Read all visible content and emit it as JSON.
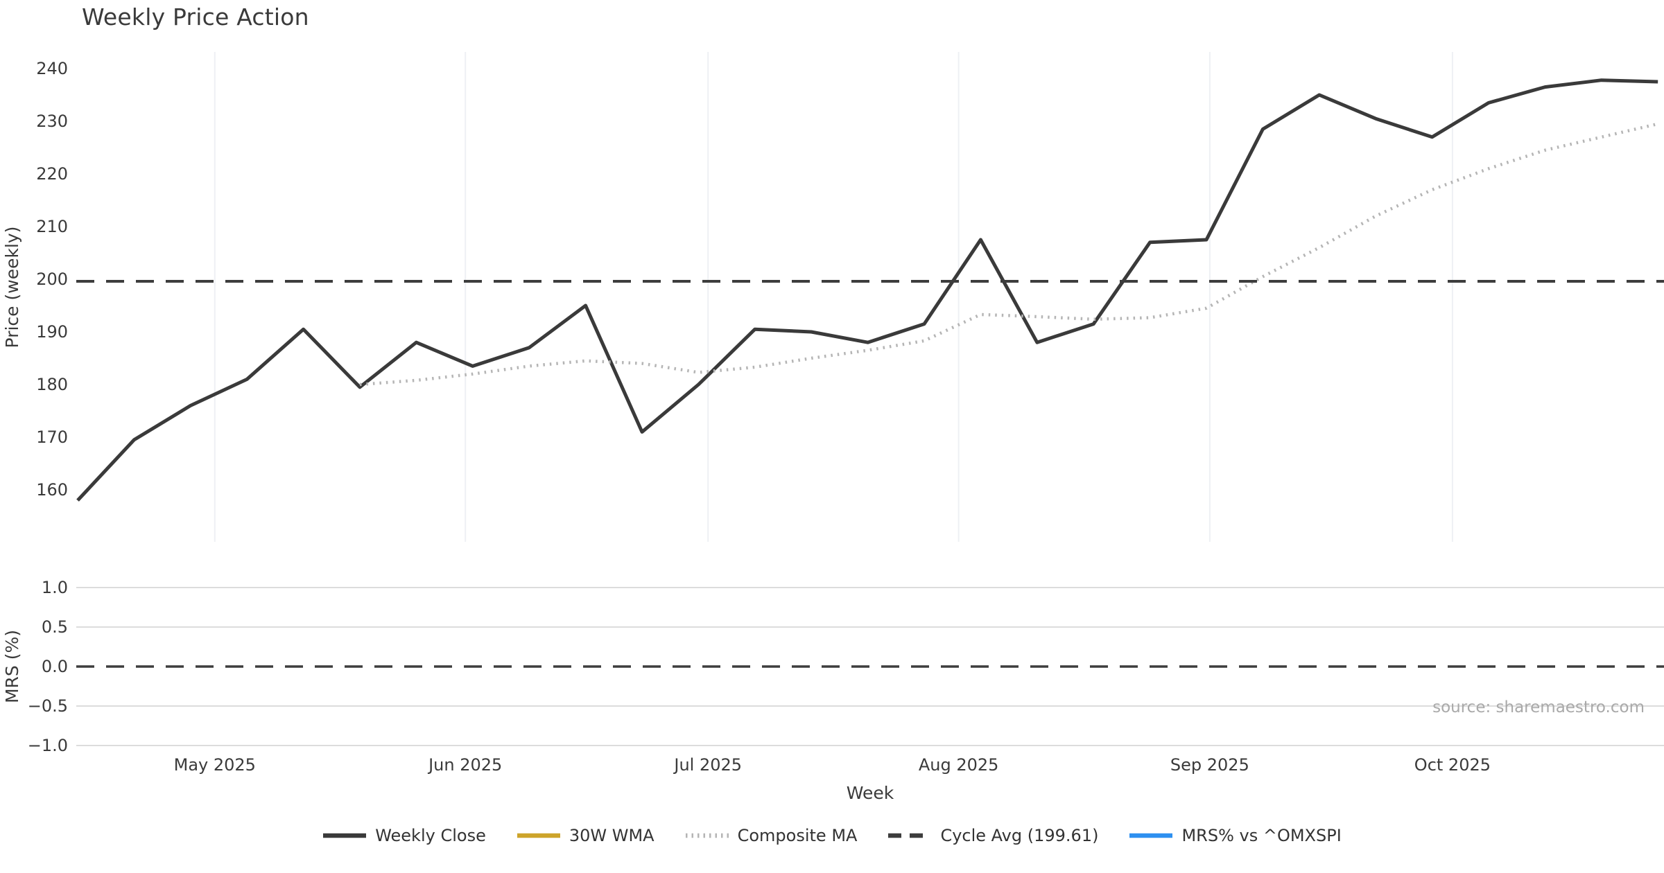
{
  "title": "Weekly Price Action",
  "source_note": "source: sharemaestro.com",
  "colors": {
    "weekly_close": "#3a3a3a",
    "wma_30w": "#cda42b",
    "composite_ma": "#b5b5b5",
    "cycle_avg": "#3d3d3d",
    "mrs_blue": "#2e90f0",
    "month_gridline": "#eef0f4",
    "mrs_gridline": "#dcdcdc",
    "tick_text": "#3a3a3a",
    "muted_text": "#a9a9a9"
  },
  "legend": [
    {
      "label": "Weekly Close",
      "color": "#3a3a3a",
      "style": "solid"
    },
    {
      "label": "30W WMA",
      "color": "#cda42b",
      "style": "solid"
    },
    {
      "label": "Composite MA",
      "color": "#b5b5b5",
      "style": "dotted"
    },
    {
      "label": "Cycle Avg (199.61)",
      "color": "#3d3d3d",
      "style": "dashed"
    },
    {
      "label": "MRS% vs ^OMXSPI",
      "color": "#2e90f0",
      "style": "solid"
    }
  ],
  "x_axis": {
    "label": "Week",
    "tick_labels": [
      "May 2025",
      "Jun 2025",
      "Jul 2025",
      "Aug 2025",
      "Sep 2025",
      "Oct 2025"
    ]
  },
  "chart_data": [
    {
      "panel": "price",
      "type": "line",
      "title": "Weekly Price Action",
      "xlabel": "Week",
      "ylabel": "Price (weekly)",
      "ylim": [
        150.1,
        243.2
      ],
      "yticks": [
        160,
        170,
        180,
        190,
        200,
        210,
        220,
        230,
        240
      ],
      "grid": "vertical-month-lines",
      "x_weekly_dates": [
        "2025-04-14",
        "2025-04-21",
        "2025-04-28",
        "2025-05-05",
        "2025-05-12",
        "2025-05-19",
        "2025-05-26",
        "2025-06-02",
        "2025-06-09",
        "2025-06-16",
        "2025-06-23",
        "2025-06-30",
        "2025-07-07",
        "2025-07-14",
        "2025-07-21",
        "2025-07-28",
        "2025-08-04",
        "2025-08-11",
        "2025-08-18",
        "2025-08-25",
        "2025-09-01",
        "2025-09-08",
        "2025-09-15",
        "2025-09-22",
        "2025-09-29",
        "2025-10-06",
        "2025-10-13",
        "2025-10-20",
        "2025-10-27"
      ],
      "months": [
        {
          "label": "May 2025",
          "week_pos": 2.43
        },
        {
          "label": "Jun 2025",
          "week_pos": 6.87
        },
        {
          "label": "Jul 2025",
          "week_pos": 11.17
        },
        {
          "label": "Aug 2025",
          "week_pos": 15.61
        },
        {
          "label": "Sep 2025",
          "week_pos": 20.06
        },
        {
          "label": "Oct 2025",
          "week_pos": 24.36
        }
      ],
      "series": [
        {
          "name": "Weekly Close",
          "style": "solid",
          "color": "#3a3a3a",
          "width": 5,
          "start_week": 0,
          "values": [
            158,
            169.5,
            176,
            181,
            190.5,
            179.5,
            188,
            183.5,
            187,
            195,
            171,
            180,
            190.5,
            190,
            188,
            191.5,
            207.5,
            188,
            191.5,
            207,
            207.5,
            228.5,
            235,
            230.5,
            227,
            233.5,
            236.5,
            237.8,
            237.5
          ]
        },
        {
          "name": "30W WMA",
          "style": "solid",
          "color": "#cda42b",
          "width": 5,
          "start_week": 0,
          "values": []
        },
        {
          "name": "Composite MA",
          "style": "dotted",
          "color": "#b5b5b5",
          "width": 4.5,
          "start_week": 5,
          "values": [
            180,
            180.8,
            182,
            183.5,
            184.5,
            184,
            182.3,
            183.3,
            185,
            186.5,
            188.3,
            193.3,
            192.9,
            192.4,
            192.7,
            194.5,
            200.5,
            206,
            212,
            217,
            221,
            224.5,
            227,
            229.5
          ]
        },
        {
          "name": "Cycle Avg",
          "style": "dashed",
          "color": "#3d3d3d",
          "width": 4,
          "type": "hline",
          "value": 199.61
        }
      ]
    },
    {
      "panel": "mrs",
      "type": "line",
      "ylabel": "MRS (%)",
      "ylim": [
        -1.14,
        1.14
      ],
      "yticks": [
        1.0,
        0.5,
        0.0,
        -0.5,
        -1.0
      ],
      "ytick_labels": [
        "1.0",
        "0.5",
        "0.0",
        "−0.5",
        "−1.0"
      ],
      "grid": "horizontal",
      "series": [
        {
          "name": "MRS% vs ^OMXSPI",
          "style": "solid",
          "color": "#2e90f0",
          "width": 4,
          "start_week": 0,
          "values": []
        },
        {
          "name": "Zero line",
          "style": "dashed",
          "color": "#3d3d3d",
          "width": 3.5,
          "type": "hline",
          "value": 0.0
        }
      ]
    }
  ]
}
